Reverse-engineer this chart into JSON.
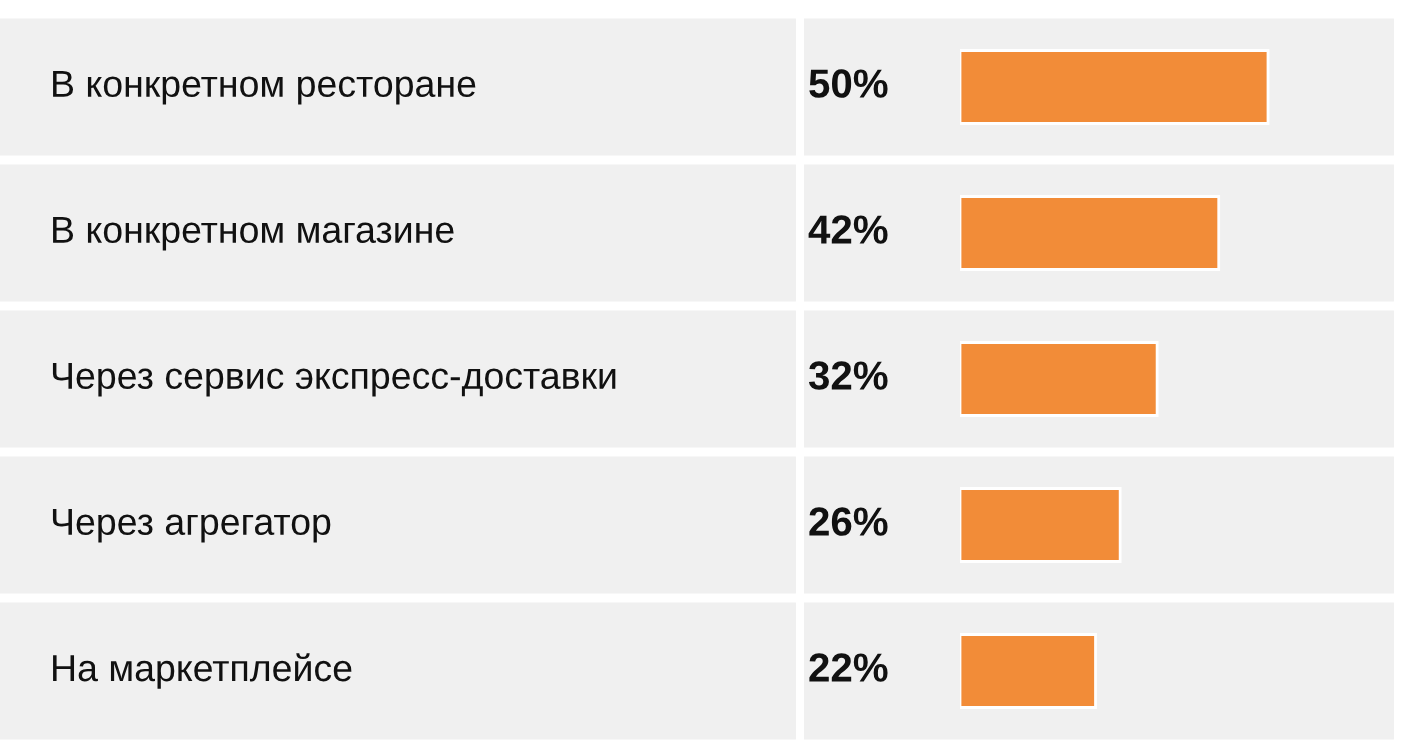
{
  "chart_data": {
    "type": "bar",
    "orientation": "horizontal",
    "categories": [
      "В конкретном ресторане",
      "В конкретном магазине",
      "Через сервис экспресс-доставки",
      "Через агрегатор",
      "На маркетплейсе"
    ],
    "values": [
      50,
      42,
      32,
      26,
      22
    ],
    "value_labels": [
      "50%",
      "42%",
      "32%",
      "26%",
      "22%"
    ],
    "color": "#f28c38"
  }
}
